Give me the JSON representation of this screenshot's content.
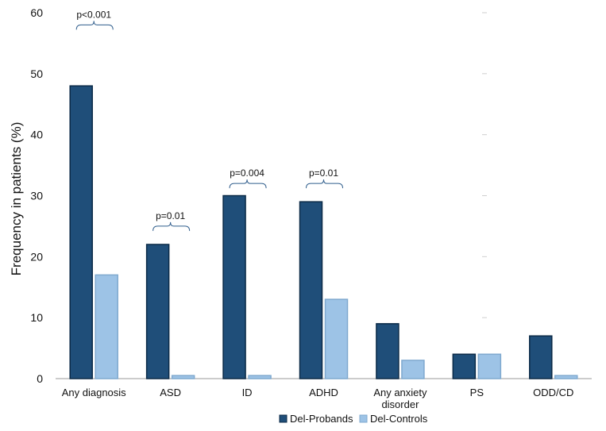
{
  "chart_data": {
    "type": "bar",
    "categories": [
      "Any diagnosis",
      "ASD",
      "ID",
      "ADHD",
      "Any anxiety disorder",
      "PS",
      "ODD/CD"
    ],
    "category_lines": [
      [
        "Any diagnosis"
      ],
      [
        "ASD"
      ],
      [
        "ID"
      ],
      [
        "ADHD"
      ],
      [
        "Any anxiety",
        "disorder"
      ],
      [
        "PS"
      ],
      [
        "ODD/CD"
      ]
    ],
    "series": [
      {
        "name": "Del-Probands",
        "color": "#1f4e79",
        "values": [
          48,
          22,
          30,
          29,
          9,
          4,
          7
        ]
      },
      {
        "name": "Del-Controls",
        "color": "#9dc3e6",
        "values": [
          17,
          0.5,
          0.5,
          13,
          3,
          4,
          0.5
        ]
      }
    ],
    "ylabel": "Frequency in patients (%)",
    "xlabel": "",
    "ylim": [
      0,
      60
    ],
    "yticks": [
      0,
      10,
      20,
      30,
      40,
      50,
      60
    ],
    "grid": false,
    "legend_position": "bottom",
    "annotations": [
      {
        "category": "Any diagnosis",
        "text": "p<0.001",
        "level": 58
      },
      {
        "category": "ASD",
        "text": "p=0.01",
        "level": 25
      },
      {
        "category": "ID",
        "text": "p=0.004",
        "level": 32
      },
      {
        "category": "ADHD",
        "text": "p=0.01",
        "level": 32
      }
    ]
  }
}
